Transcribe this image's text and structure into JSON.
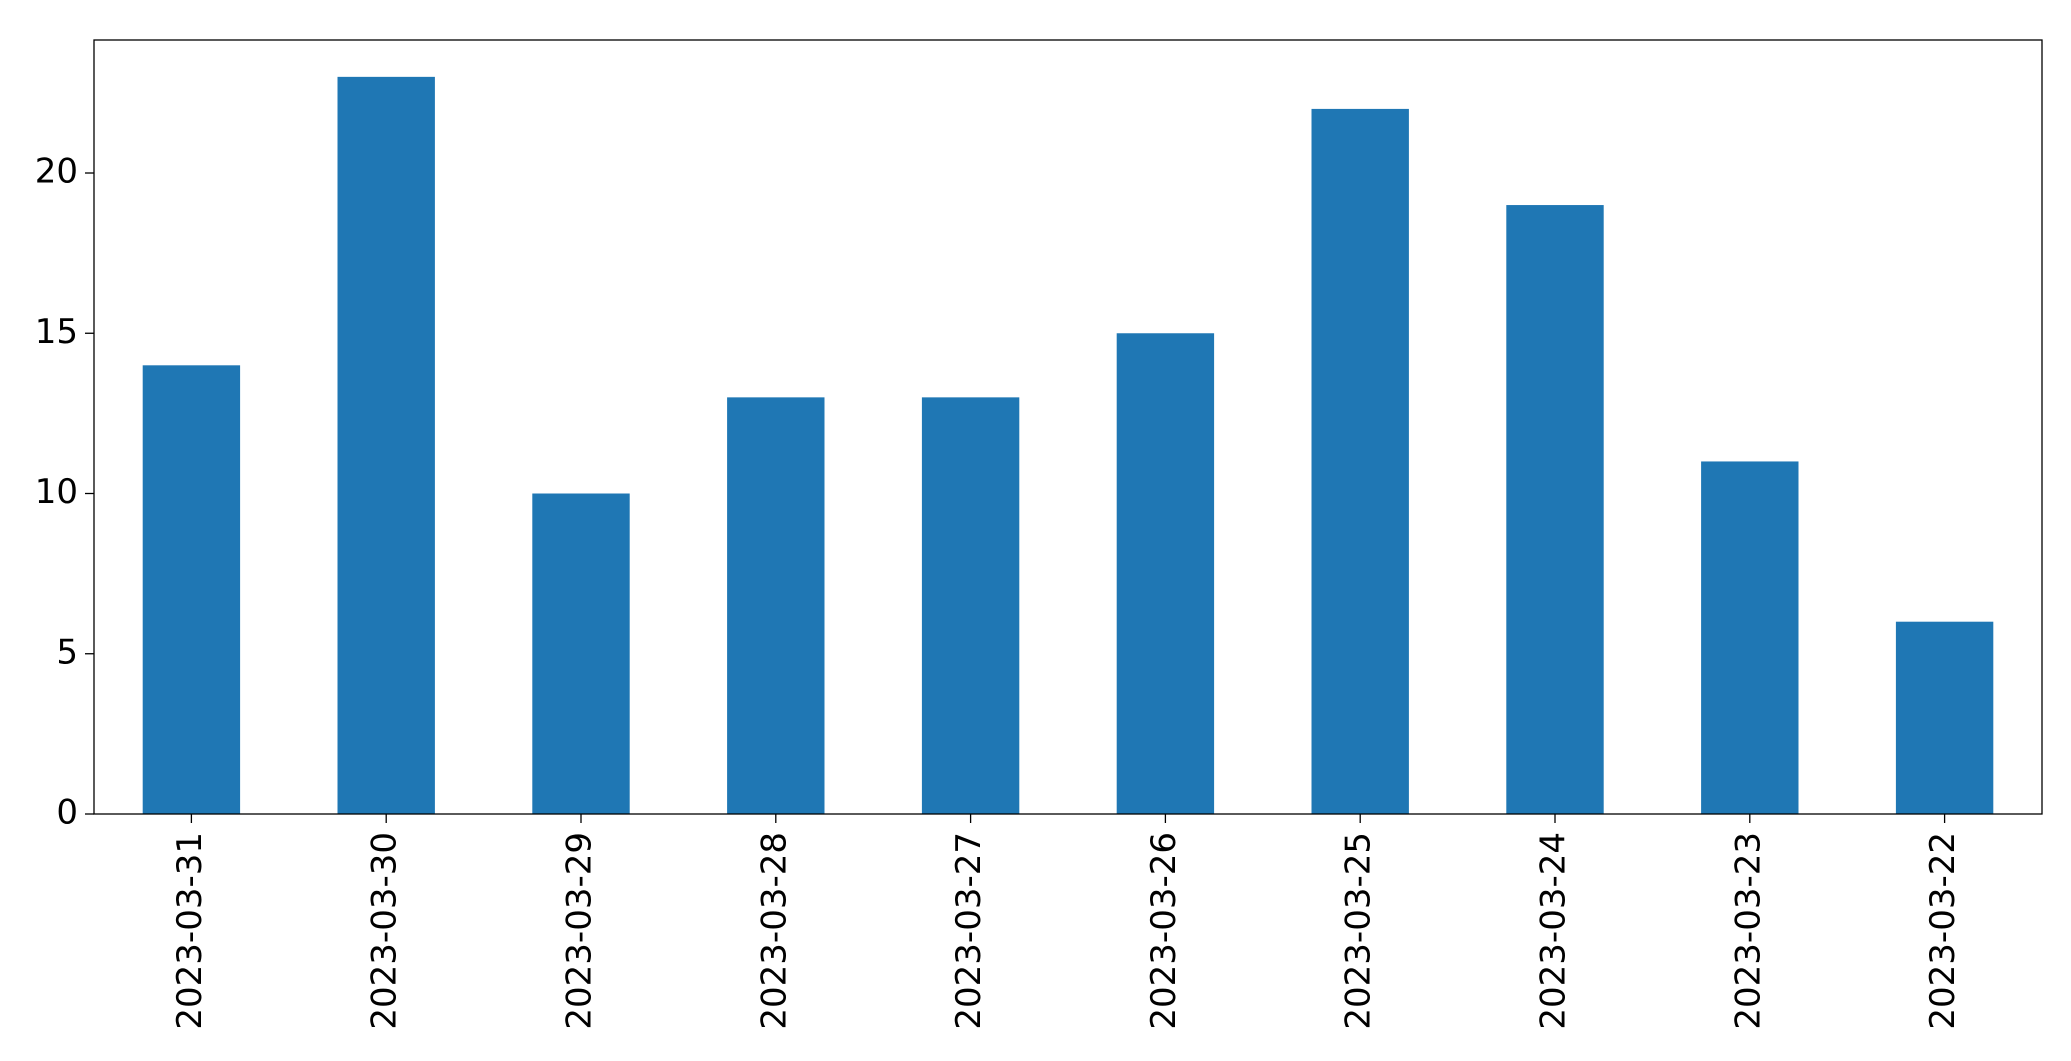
{
  "chart_data": {
    "type": "bar",
    "categories": [
      "2023-03-31",
      "2023-03-30",
      "2023-03-29",
      "2023-03-28",
      "2023-03-27",
      "2023-03-26",
      "2023-03-25",
      "2023-03-24",
      "2023-03-23",
      "2023-03-22"
    ],
    "values": [
      14,
      23,
      10,
      13,
      13,
      15,
      22,
      19,
      11,
      6
    ],
    "color": "#1f77b4",
    "ylim": [
      0,
      24.15
    ],
    "yticks": [
      0,
      5,
      10,
      15,
      20
    ],
    "grid": false
  }
}
